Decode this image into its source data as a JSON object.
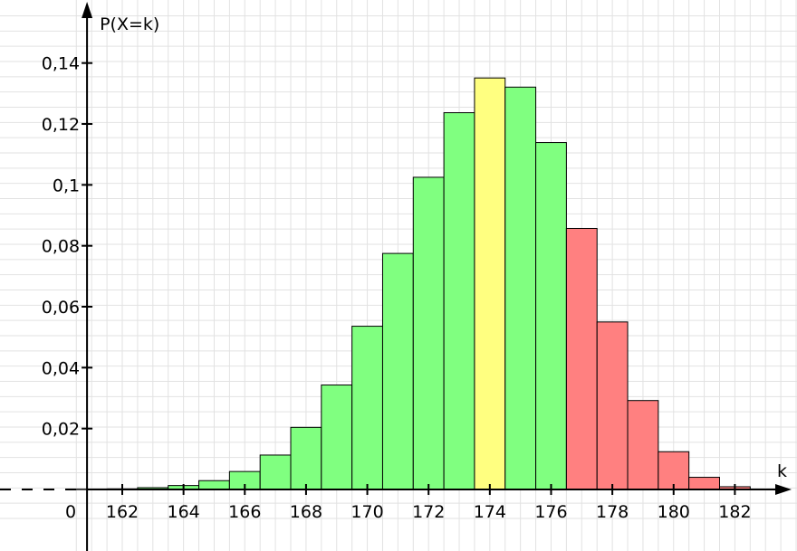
{
  "chart_data": {
    "type": "bar",
    "ylabel": "P(X=k)",
    "xlabel": "k",
    "origin_label": "0",
    "xlim": [
      160.5,
      184.0
    ],
    "ylim": [
      -0.0095,
      0.1595
    ],
    "x_ticks": [
      162,
      164,
      166,
      168,
      170,
      172,
      174,
      176,
      178,
      180,
      182
    ],
    "x_tick_labels": [
      "162",
      "164",
      "166",
      "168",
      "170",
      "172",
      "174",
      "176",
      "178",
      "180",
      "182"
    ],
    "y_ticks": [
      0.02,
      0.04,
      0.06,
      0.08,
      0.1,
      0.12,
      0.14
    ],
    "y_tick_labels": [
      "0,02",
      "0,04",
      "0,06",
      "0,08",
      "0,1",
      "0,12",
      "0,14"
    ],
    "grid": true,
    "categories": [
      161,
      162,
      163,
      164,
      165,
      166,
      167,
      168,
      169,
      170,
      171,
      172,
      173,
      174,
      175,
      176,
      177,
      178,
      179,
      180,
      181,
      182
    ],
    "values": [
      0.0001,
      0.0002,
      0.0006,
      0.0013,
      0.0029,
      0.0059,
      0.0113,
      0.0204,
      0.0343,
      0.0536,
      0.0775,
      0.1025,
      0.1237,
      0.1351,
      0.1321,
      0.1139,
      0.0857,
      0.055,
      0.0292,
      0.0124,
      0.004,
      0.0009
    ],
    "bar_colors": [
      "#80ff80",
      "#80ff80",
      "#80ff80",
      "#80ff80",
      "#80ff80",
      "#80ff80",
      "#80ff80",
      "#80ff80",
      "#80ff80",
      "#80ff80",
      "#80ff80",
      "#80ff80",
      "#80ff80",
      "#ffff80",
      "#80ff80",
      "#80ff80",
      "#ff8080",
      "#ff8080",
      "#ff8080",
      "#ff8080",
      "#ff8080",
      "#ff8080"
    ],
    "grid_color": "#e2e2e2",
    "axis_color": "#000000"
  }
}
